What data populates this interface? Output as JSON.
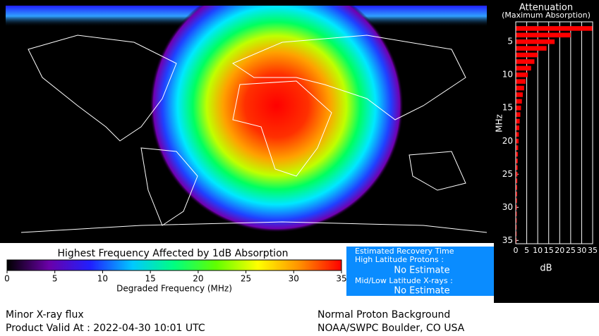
{
  "colorbar": {
    "title": "Highest Frequency Affected by 1dB Absorption",
    "label": "Degraded Frequency (MHz)",
    "lim": [
      0,
      35
    ],
    "ticks": [
      0,
      5,
      10,
      15,
      20,
      25,
      30,
      35
    ],
    "colors": [
      "#000000",
      "#6a00a8",
      "#2020ff",
      "#00c8ff",
      "#00ff80",
      "#60ff00",
      "#ffff00",
      "#ff9000",
      "#ff0000"
    ]
  },
  "recovery": {
    "title": "Estimated Recovery Time",
    "high_label": "High Latitude Protons :",
    "high_value": "No Estimate",
    "mid_label": "Mid/Low Latitude X-rays :",
    "mid_value": "No Estimate"
  },
  "footer": {
    "left1": "Minor X-ray flux",
    "left2": "Product Valid At : 2022-04-30 10:01 UTC",
    "right1": "Normal Proton Background",
    "right2": "NOAA/SWPC Boulder, CO USA"
  },
  "chart_data": {
    "type": "bar",
    "orientation": "horizontal",
    "title": "Attenuation",
    "subtitle": "(Maximum Absorption)",
    "y_label": "MHz",
    "x_label": "dB",
    "y": [
      3,
      4,
      5,
      6,
      7,
      8,
      9,
      10,
      11,
      12,
      13,
      14,
      15,
      16,
      17,
      18,
      19,
      20,
      21,
      22,
      23,
      24,
      25,
      26,
      27,
      28,
      29,
      30,
      31,
      32,
      33,
      34,
      35
    ],
    "values": [
      35,
      25,
      17.7,
      14,
      10,
      8.5,
      7,
      5.5,
      4.5,
      3.8,
      3.2,
      2.8,
      2.4,
      2.1,
      1.8,
      1.6,
      1.4,
      1.3,
      1.1,
      1,
      0.9,
      0.85,
      0.8,
      0.7,
      0.65,
      0.6,
      0.55,
      0.5,
      0.45,
      0.42,
      0.4,
      0.37,
      0.35
    ],
    "color": "#ff0000",
    "xlim": [
      0,
      35
    ],
    "xticks": [
      0,
      5,
      10,
      15,
      20,
      25,
      30,
      35
    ],
    "ylim": [
      2,
      35.5
    ],
    "yticks": [
      5,
      10,
      15,
      20,
      25,
      30,
      35
    ],
    "y_inverted": true,
    "grid": true
  }
}
